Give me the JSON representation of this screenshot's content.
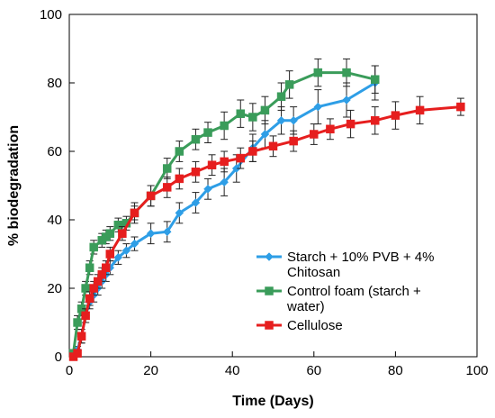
{
  "chart_data": {
    "type": "line",
    "xlabel": "Time (Days)",
    "ylabel": "% biodegradation",
    "xlim": [
      0,
      100
    ],
    "ylim": [
      0,
      100
    ],
    "xticks": [
      0,
      20,
      40,
      60,
      80,
      100
    ],
    "yticks": [
      0,
      20,
      40,
      60,
      80,
      100
    ],
    "grid": false,
    "legend_position": "bottom-right",
    "series": [
      {
        "name": "Starch + 10% PVB + 4% Chitosan",
        "legend_lines": [
          "Starch + 10% PVB + 4%",
          "Chitosan"
        ],
        "color": "#2e9ee6",
        "marker": "diamond",
        "points": [
          {
            "x": 1,
            "y": 0.5,
            "err": 0.5
          },
          {
            "x": 2,
            "y": 2,
            "err": 1
          },
          {
            "x": 3,
            "y": 6,
            "err": 2
          },
          {
            "x": 4,
            "y": 12,
            "err": 2
          },
          {
            "x": 5,
            "y": 16,
            "err": 2
          },
          {
            "x": 6,
            "y": 18,
            "err": 2
          },
          {
            "x": 7,
            "y": 20,
            "err": 2
          },
          {
            "x": 8,
            "y": 22,
            "err": 2
          },
          {
            "x": 9,
            "y": 24,
            "err": 2
          },
          {
            "x": 10,
            "y": 26,
            "err": 2
          },
          {
            "x": 12,
            "y": 29,
            "err": 2
          },
          {
            "x": 14,
            "y": 31,
            "err": 2
          },
          {
            "x": 16,
            "y": 33,
            "err": 2
          },
          {
            "x": 20,
            "y": 36,
            "err": 3
          },
          {
            "x": 24,
            "y": 36.5,
            "err": 3
          },
          {
            "x": 27,
            "y": 42,
            "err": 3
          },
          {
            "x": 31,
            "y": 45,
            "err": 3
          },
          {
            "x": 34,
            "y": 49,
            "err": 3
          },
          {
            "x": 38,
            "y": 51,
            "err": 4
          },
          {
            "x": 41,
            "y": 55,
            "err": 4
          },
          {
            "x": 45,
            "y": 61,
            "err": 4
          },
          {
            "x": 48,
            "y": 65,
            "err": 4
          },
          {
            "x": 52,
            "y": 69,
            "err": 4
          },
          {
            "x": 55,
            "y": 69,
            "err": 4
          },
          {
            "x": 61,
            "y": 73,
            "err": 5
          },
          {
            "x": 68,
            "y": 75,
            "err": 5
          },
          {
            "x": 75,
            "y": 80,
            "err": 5
          }
        ]
      },
      {
        "name": "Control foam (starch + water)",
        "legend_lines": [
          "Control foam (starch +",
          "water)"
        ],
        "color": "#3a9c5a",
        "marker": "square",
        "points": [
          {
            "x": 1,
            "y": 1,
            "err": 1
          },
          {
            "x": 2,
            "y": 10,
            "err": 2
          },
          {
            "x": 3,
            "y": 14,
            "err": 2
          },
          {
            "x": 4,
            "y": 20,
            "err": 2
          },
          {
            "x": 5,
            "y": 26,
            "err": 2
          },
          {
            "x": 6,
            "y": 32,
            "err": 2
          },
          {
            "x": 8,
            "y": 34,
            "err": 2
          },
          {
            "x": 9,
            "y": 35,
            "err": 2
          },
          {
            "x": 10,
            "y": 36,
            "err": 2
          },
          {
            "x": 12,
            "y": 38.5,
            "err": 2
          },
          {
            "x": 14,
            "y": 39,
            "err": 2
          },
          {
            "x": 16,
            "y": 42,
            "err": 2
          },
          {
            "x": 20,
            "y": 47,
            "err": 3
          },
          {
            "x": 24,
            "y": 55,
            "err": 3
          },
          {
            "x": 27,
            "y": 60,
            "err": 3
          },
          {
            "x": 31,
            "y": 63.5,
            "err": 3
          },
          {
            "x": 34,
            "y": 65.5,
            "err": 3
          },
          {
            "x": 38,
            "y": 67.5,
            "err": 4
          },
          {
            "x": 42,
            "y": 71,
            "err": 4
          },
          {
            "x": 45,
            "y": 70,
            "err": 4
          },
          {
            "x": 48,
            "y": 72,
            "err": 4
          },
          {
            "x": 52,
            "y": 76,
            "err": 4
          },
          {
            "x": 54,
            "y": 79.5,
            "err": 4
          },
          {
            "x": 61,
            "y": 83,
            "err": 4
          },
          {
            "x": 68,
            "y": 83,
            "err": 4
          },
          {
            "x": 75,
            "y": 81,
            "err": 4
          }
        ]
      },
      {
        "name": "Cellulose",
        "legend_lines": [
          "Cellulose"
        ],
        "color": "#e61e1e",
        "marker": "square",
        "points": [
          {
            "x": 1,
            "y": 0,
            "err": 0.5
          },
          {
            "x": 2,
            "y": 1,
            "err": 1
          },
          {
            "x": 3,
            "y": 6,
            "err": 2
          },
          {
            "x": 4,
            "y": 12,
            "err": 2
          },
          {
            "x": 5,
            "y": 17,
            "err": 2
          },
          {
            "x": 6,
            "y": 20,
            "err": 2
          },
          {
            "x": 7,
            "y": 22,
            "err": 2
          },
          {
            "x": 8,
            "y": 24,
            "err": 2
          },
          {
            "x": 9,
            "y": 26,
            "err": 2
          },
          {
            "x": 10,
            "y": 30,
            "err": 2
          },
          {
            "x": 13,
            "y": 36,
            "err": 2
          },
          {
            "x": 16,
            "y": 42,
            "err": 3
          },
          {
            "x": 20,
            "y": 47,
            "err": 3
          },
          {
            "x": 24,
            "y": 49.5,
            "err": 3
          },
          {
            "x": 27,
            "y": 52,
            "err": 3
          },
          {
            "x": 31,
            "y": 54,
            "err": 3
          },
          {
            "x": 35,
            "y": 56,
            "err": 3
          },
          {
            "x": 38,
            "y": 57,
            "err": 3
          },
          {
            "x": 42,
            "y": 58,
            "err": 3
          },
          {
            "x": 45,
            "y": 60,
            "err": 3
          },
          {
            "x": 50,
            "y": 61.5,
            "err": 3
          },
          {
            "x": 55,
            "y": 63,
            "err": 3
          },
          {
            "x": 60,
            "y": 65,
            "err": 3
          },
          {
            "x": 64,
            "y": 66.5,
            "err": 3
          },
          {
            "x": 69,
            "y": 68,
            "err": 4
          },
          {
            "x": 75,
            "y": 69,
            "err": 4
          },
          {
            "x": 80,
            "y": 70.5,
            "err": 4
          },
          {
            "x": 86,
            "y": 72,
            "err": 4
          },
          {
            "x": 96,
            "y": 73,
            "err": 2.5
          }
        ]
      }
    ]
  }
}
